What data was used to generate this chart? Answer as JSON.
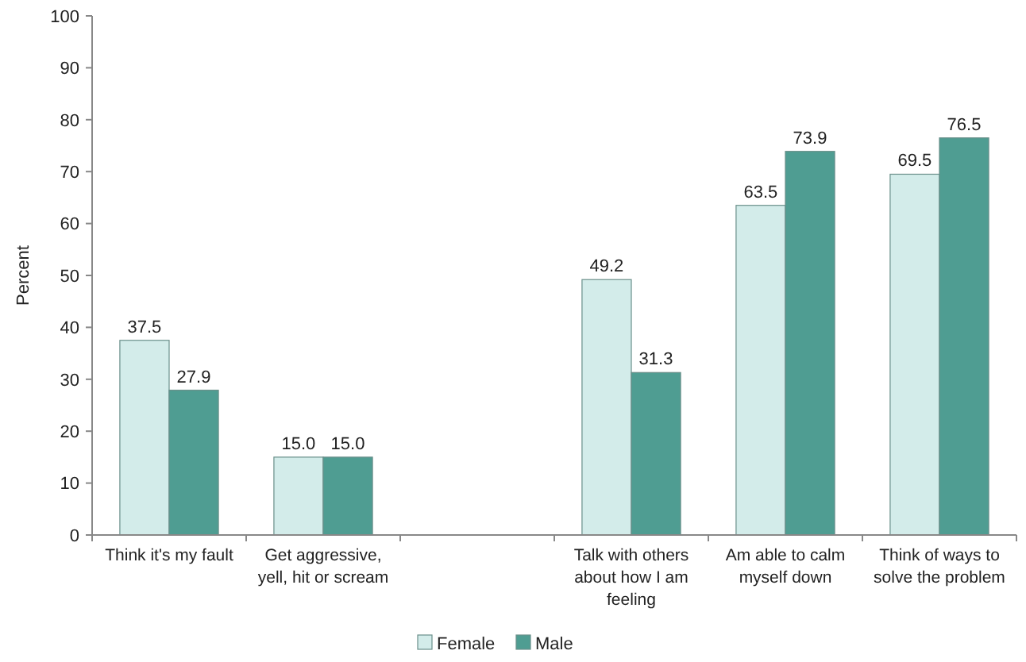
{
  "chart_data": {
    "type": "bar",
    "ylabel": "Percent",
    "categories": [
      "Think it's my fault",
      "Get aggressive, yell, hit or scream",
      null,
      "Talk with others about how I am feeling",
      "Am able to calm myself down",
      "Think of ways to solve the problem"
    ],
    "series": [
      {
        "name": "Female",
        "color": "#d3ecea",
        "values": [
          37.5,
          15.0,
          null,
          49.2,
          63.5,
          69.5
        ],
        "value_labels": [
          "37.5",
          "15.0",
          null,
          "49.2",
          "63.5",
          "69.5"
        ]
      },
      {
        "name": "Male",
        "color": "#4f9d92",
        "values": [
          27.9,
          15.0,
          null,
          31.3,
          73.9,
          76.5
        ],
        "value_labels": [
          "27.9",
          "15.0",
          null,
          "31.3",
          "73.9",
          "76.5"
        ]
      }
    ],
    "ylim": [
      0,
      100
    ],
    "yticks": [
      0,
      10,
      20,
      30,
      40,
      50,
      60,
      70,
      80,
      90,
      100
    ],
    "grid": false,
    "legend": "bottom"
  }
}
